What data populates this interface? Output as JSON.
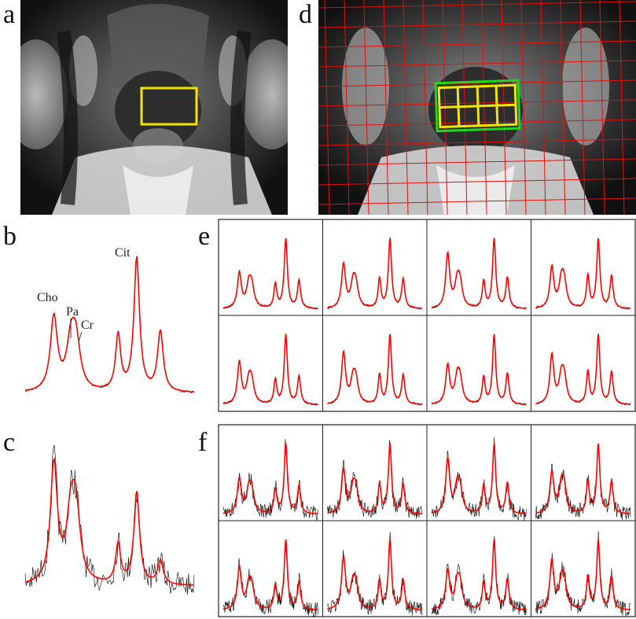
{
  "panels": {
    "a": "a",
    "b": "b",
    "c": "c",
    "d": "d",
    "e": "e",
    "f": "f"
  },
  "peaks": {
    "cho": "Cho",
    "pa": "Pa",
    "cr": "Cr",
    "cit": "Cit"
  },
  "colors": {
    "voxel_box": "#f2e600",
    "press_box": "#1ed81e",
    "grid": "#e01010",
    "fit": "#ff0000",
    "data": "#000000"
  },
  "grid_e": {
    "rows": 2,
    "cols": 4
  },
  "grid_f": {
    "rows": 2,
    "cols": 4
  },
  "voxel_grid_d": {
    "rows": 2,
    "cols": 4
  }
}
